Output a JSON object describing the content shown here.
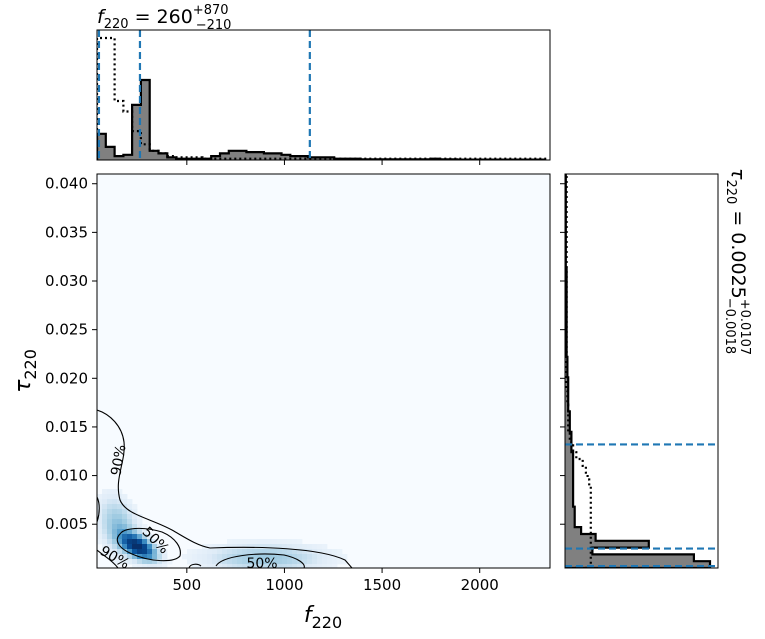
{
  "chart_data": {
    "type": "corner",
    "title_top": {
      "var": "f",
      "sub": "220",
      "rest": " = 260",
      "sup": "+870",
      "subscript": "−210"
    },
    "title_right": {
      "var": "τ",
      "sub": "220",
      "rest": " = 0.0025",
      "sup": "+0.0107",
      "subscript": "−0.0018"
    },
    "xlabel": {
      "var": "f",
      "sub": "220"
    },
    "ylabel": {
      "var": "τ",
      "sub": "220"
    },
    "xlim": [
      40,
      2360
    ],
    "ylim": [
      0.0005,
      0.041
    ],
    "x_ticks": [
      500,
      1000,
      1500,
      2000
    ],
    "x_tick_labels": [
      "500",
      "1000",
      "1500",
      "2000"
    ],
    "y_ticks": [
      0.005,
      0.01,
      0.015,
      0.02,
      0.025,
      0.03,
      0.035,
      0.04
    ],
    "y_tick_labels": [
      "0.005",
      "0.010",
      "0.015",
      "0.020",
      "0.025",
      "0.030",
      "0.035",
      "0.040"
    ],
    "f_quantiles": [
      50,
      260,
      1130
    ],
    "tau_quantiles": [
      0.0007,
      0.0025,
      0.0132
    ],
    "contour_labels": [
      "90%",
      "50%",
      "50%",
      "90%"
    ],
    "f_hist": {
      "edges": [
        40,
        85,
        130,
        175,
        220,
        265,
        310,
        355,
        400,
        445,
        490,
        535,
        580,
        625,
        670,
        715,
        760,
        805,
        850,
        895,
        940,
        985,
        1030,
        1075,
        1120,
        1165,
        1210,
        1255,
        1300,
        1345,
        1390,
        1435,
        1480,
        1525,
        1570,
        1615,
        1660,
        1705,
        1750,
        1795,
        1840,
        1885,
        1930,
        1975,
        2020,
        2065,
        2110,
        2155,
        2200,
        2245,
        2290,
        2335
      ],
      "values": [
        0.2,
        0.1,
        0.03,
        0.04,
        0.42,
        0.61,
        0.07,
        0.05,
        0.02,
        0.01,
        0.01,
        0.01,
        0.01,
        0.03,
        0.05,
        0.07,
        0.07,
        0.06,
        0.06,
        0.05,
        0.05,
        0.04,
        0.03,
        0.03,
        0.02,
        0.02,
        0.02,
        0.01,
        0.01,
        0.01,
        0.005,
        0.005,
        0.005,
        0.005,
        0.005,
        0.005,
        0.005,
        0.005,
        0.01,
        0.005,
        0.005,
        0.003,
        0.003,
        0.003,
        0.003,
        0.003,
        0.003,
        0.003,
        0.003,
        0.003,
        0.003
      ],
      "prior_values": [
        0.93,
        0.93,
        0.45,
        0.37,
        0.22,
        0.12,
        0.07,
        0.05,
        0.03,
        0.02,
        0.02,
        0.02,
        0.01,
        0.01,
        0.01,
        0.01,
        0.01,
        0.01,
        0.01,
        0.01,
        0.01,
        0.01,
        0.01,
        0.01,
        0.01,
        0.01,
        0.01,
        0.01,
        0.01,
        0.01,
        0.01,
        0.01,
        0.01,
        0.01,
        0.01,
        0.01,
        0.01,
        0.01,
        0.01,
        0.01,
        0.01,
        0.01,
        0.01,
        0.01,
        0.01,
        0.01,
        0.01,
        0.01,
        0.01,
        0.01,
        0.01
      ]
    },
    "tau_hist": {
      "edges": [
        0.0005,
        0.0012,
        0.0019,
        0.0026,
        0.0033,
        0.004,
        0.0047,
        0.0054,
        0.0061,
        0.0068,
        0.0075,
        0.0082,
        0.0089,
        0.0096,
        0.0103,
        0.011,
        0.0117,
        0.0124,
        0.0131,
        0.0138,
        0.0145,
        0.0152,
        0.0159,
        0.0166,
        0.0173,
        0.018,
        0.0187,
        0.0194,
        0.0201,
        0.0208,
        0.0215,
        0.0222,
        0.0229,
        0.0236,
        0.0243,
        0.025,
        0.0257,
        0.0264,
        0.0271,
        0.0278,
        0.0285,
        0.0292,
        0.0299,
        0.0306,
        0.0313,
        0.032,
        0.0327,
        0.0334,
        0.0341,
        0.0348,
        0.0355,
        0.0362,
        0.0369,
        0.0376,
        0.0383,
        0.039,
        0.0397,
        0.0404,
        0.0411
      ],
      "values": [
        0.9,
        0.8,
        0.17,
        0.52,
        0.19,
        0.1,
        0.06,
        0.06,
        0.06,
        0.05,
        0.05,
        0.05,
        0.05,
        0.05,
        0.05,
        0.05,
        0.05,
        0.04,
        0.04,
        0.04,
        0.03,
        0.03,
        0.03,
        0.02,
        0.02,
        0.02,
        0.02,
        0.02,
        0.015,
        0.015,
        0.015,
        0.01,
        0.01,
        0.01,
        0.01,
        0.01,
        0.01,
        0.01,
        0.01,
        0.01,
        0.01,
        0.01,
        0.01,
        0.01,
        0.005,
        0.005,
        0.005,
        0.005,
        0.005,
        0.005,
        0.005,
        0.005,
        0.005,
        0.005,
        0.005,
        0.005,
        0.005,
        0.005
      ],
      "prior_values": [
        0.16,
        0.16,
        0.16,
        0.16,
        0.16,
        0.16,
        0.16,
        0.16,
        0.16,
        0.16,
        0.16,
        0.16,
        0.15,
        0.14,
        0.13,
        0.11,
        0.07,
        0.05,
        0.04,
        0.03,
        0.02,
        0.02,
        0.02,
        0.02,
        0.015,
        0.015,
        0.01,
        0.01,
        0.01,
        0.01,
        0.01,
        0.01,
        0.01,
        0.01,
        0.01,
        0.01,
        0.01,
        0.01,
        0.01,
        0.01,
        0.01,
        0.01,
        0.01,
        0.01,
        0.01,
        0.01,
        0.01,
        0.01,
        0.01,
        0.01,
        0.01,
        0.01,
        0.01,
        0.01,
        0.01,
        0.01,
        0.01,
        0.01
      ]
    },
    "density": {
      "peaks": [
        {
          "f": 250,
          "tau": 0.0027,
          "weight": 1.0
        },
        {
          "f": 150,
          "tau": 0.0048,
          "weight": 0.25
        },
        {
          "f": 900,
          "tau": 0.0015,
          "weight": 0.22
        }
      ]
    },
    "colors": {
      "quantile": "#1f77b4",
      "hist_fill": "#808080",
      "line": "#000000",
      "density_max": "#08306b"
    }
  }
}
